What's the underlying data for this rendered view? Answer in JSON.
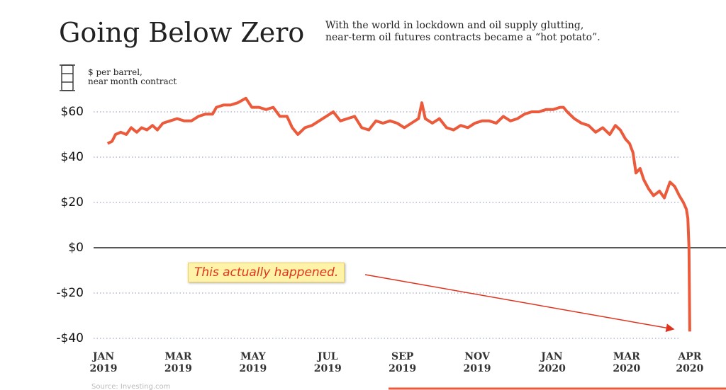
{
  "chart_data": {
    "type": "line",
    "title": "Going Below Zero",
    "subtitle": "With the world in lockdown and oil supply glutting,\nnear-term oil futures contracts became a “hot potato”.",
    "y_label": "$ per barrel,\nnear month contract",
    "annotation": "This actually happened.",
    "source": "Source: Investing.com",
    "color": "#ec5a3c",
    "grid": true,
    "xlim": [
      -0.266,
      16.66
    ],
    "ylim": [
      -40,
      70
    ],
    "xticks": [
      {
        "value": 0,
        "label": "JAN\n2019"
      },
      {
        "value": 2,
        "label": "MAR\n2019"
      },
      {
        "value": 4,
        "label": "MAY\n2019"
      },
      {
        "value": 6,
        "label": "JUL\n2019"
      },
      {
        "value": 8,
        "label": "SEP\n2019"
      },
      {
        "value": 10,
        "label": "NOV\n2019"
      },
      {
        "value": 12,
        "label": "JAN\n2020"
      },
      {
        "value": 14,
        "label": "MAR\n2020"
      },
      {
        "value": 15.69,
        "label": "APR\n2020"
      }
    ],
    "yticks": [
      {
        "value": -40,
        "label": "-$40"
      },
      {
        "value": -20,
        "label": "-$20"
      },
      {
        "value": 0,
        "label": "$0"
      },
      {
        "value": 20,
        "label": "$20"
      },
      {
        "value": 40,
        "label": "$40"
      },
      {
        "value": 60,
        "label": "$60"
      }
    ],
    "x": [
      0.11,
      0.23,
      0.32,
      0.46,
      0.61,
      0.74,
      0.89,
      1.02,
      1.16,
      1.31,
      1.44,
      1.59,
      1.78,
      1.97,
      2.16,
      2.35,
      2.54,
      2.73,
      2.92,
      3.02,
      3.21,
      3.4,
      3.59,
      3.81,
      3.97,
      4.16,
      4.35,
      4.54,
      4.72,
      4.91,
      5.05,
      5.2,
      5.39,
      5.58,
      5.77,
      5.96,
      6.15,
      6.34,
      6.53,
      6.72,
      6.91,
      7.1,
      7.29,
      7.48,
      7.67,
      7.86,
      8.05,
      8.24,
      8.43,
      8.52,
      8.61,
      8.8,
      8.99,
      9.18,
      9.37,
      9.56,
      9.75,
      9.94,
      10.13,
      10.32,
      10.51,
      10.7,
      10.89,
      11.08,
      11.27,
      11.46,
      11.65,
      11.84,
      12.03,
      12.22,
      12.31,
      12.41,
      12.6,
      12.79,
      12.98,
      13.17,
      13.36,
      13.55,
      13.7,
      13.83,
      13.97,
      14.08,
      14.17,
      14.25,
      14.36,
      14.46,
      14.59,
      14.72,
      14.88,
      15.01,
      15.16,
      15.29,
      15.41,
      15.52,
      15.6,
      15.64,
      15.67,
      15.69
    ],
    "values": [
      46,
      47,
      50,
      51,
      50,
      53,
      51,
      53,
      52,
      54,
      52,
      55,
      56,
      57,
      56,
      56,
      58,
      59,
      59,
      62,
      63,
      63,
      64,
      66,
      62,
      62,
      61,
      62,
      58,
      58,
      53,
      50,
      53,
      54,
      56,
      58,
      60,
      56,
      57,
      58,
      53,
      52,
      56,
      55,
      56,
      55,
      53,
      55,
      57,
      64,
      57,
      55,
      57,
      53,
      52,
      54,
      53,
      55,
      56,
      56,
      55,
      58,
      56,
      57,
      59,
      60,
      60,
      61,
      61,
      62,
      62,
      60,
      57,
      55,
      54,
      51,
      53,
      50,
      54,
      52,
      48,
      46,
      42,
      33,
      35,
      30,
      26,
      23,
      25,
      22,
      29,
      27,
      23,
      20,
      17,
      13,
      0,
      -37
    ]
  }
}
